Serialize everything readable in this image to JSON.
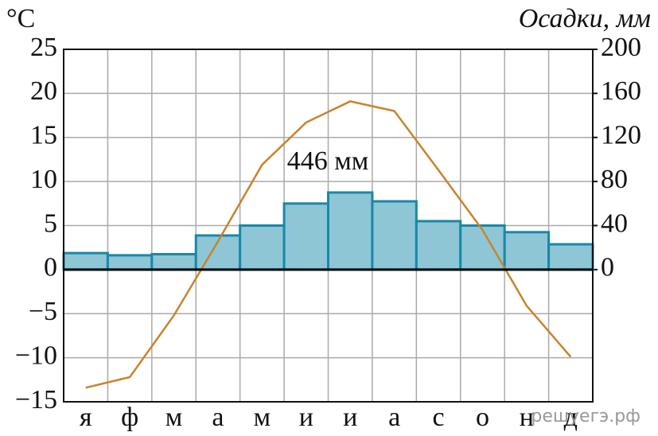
{
  "chart_data": {
    "type": "climate",
    "y_label": "°C",
    "y2_label": "Осадки, мм",
    "annotation": "446 мм",
    "watermark": "решуегэ.рф",
    "categories": [
      "я",
      "ф",
      "м",
      "а",
      "м",
      "и",
      "и",
      "а",
      "с",
      "о",
      "н",
      "д"
    ],
    "series": [
      {
        "type": "bar",
        "axis": "y2",
        "color": "#8ec6d6",
        "edge": "#1a88a6",
        "values": [
          15,
          13,
          14,
          31,
          40,
          60,
          70,
          62,
          44,
          40,
          34,
          23
        ]
      },
      {
        "type": "line",
        "color": "#c8842a",
        "values": [
          -13.4,
          -12.2,
          -5.2,
          3.2,
          11.9,
          16.7,
          19.1,
          18.0,
          11.3,
          4.5,
          -4.1,
          -9.9
        ]
      }
    ],
    "ylim": [
      -15,
      25
    ],
    "yticks": [
      {
        "value": -15,
        "label": "−15"
      },
      {
        "value": -10,
        "label": "−10"
      },
      {
        "value": -5,
        "label": "−5"
      },
      0,
      5,
      10,
      15,
      20,
      25
    ],
    "y2lim": [
      -120,
      200
    ],
    "y2ticks": [
      0,
      40,
      80,
      120,
      160,
      200
    ],
    "grid": true
  }
}
